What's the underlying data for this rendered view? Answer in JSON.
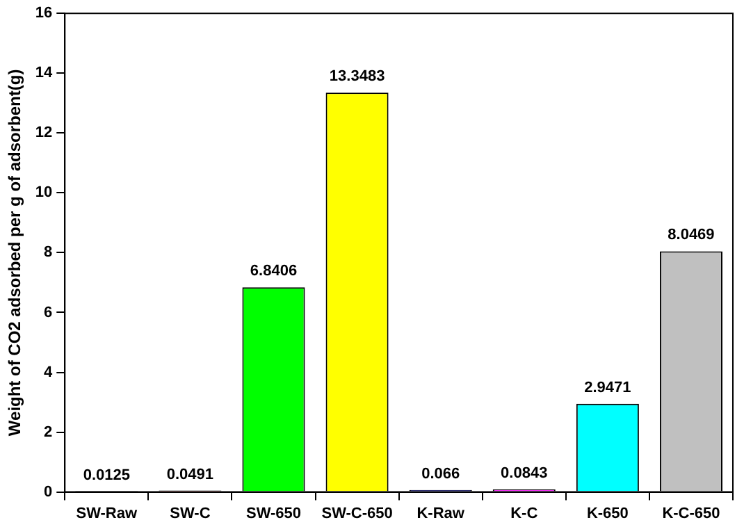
{
  "chart_data": {
    "type": "bar",
    "ylabel": "Weight of CO2 adsorbed per g of adsorbent(g)",
    "categories": [
      "SW-Raw",
      "SW-C",
      "SW-650",
      "SW-C-650",
      "K-Raw",
      "K-C",
      "K-650",
      "K-C-650"
    ],
    "values": [
      0.0125,
      0.0491,
      6.8406,
      13.3483,
      0.066,
      0.0843,
      2.9471,
      8.0469
    ],
    "colors": [
      "#000000",
      "#ff0000",
      "#00ff00",
      "#ffff00",
      "#0000ff",
      "#ff00ff",
      "#00ffff",
      "#c0c0c0"
    ],
    "ylim": [
      0,
      16
    ],
    "yticks": [
      0,
      2,
      4,
      6,
      8,
      10,
      12,
      14,
      16
    ],
    "grid": false,
    "legend": false,
    "data_labels": true
  }
}
